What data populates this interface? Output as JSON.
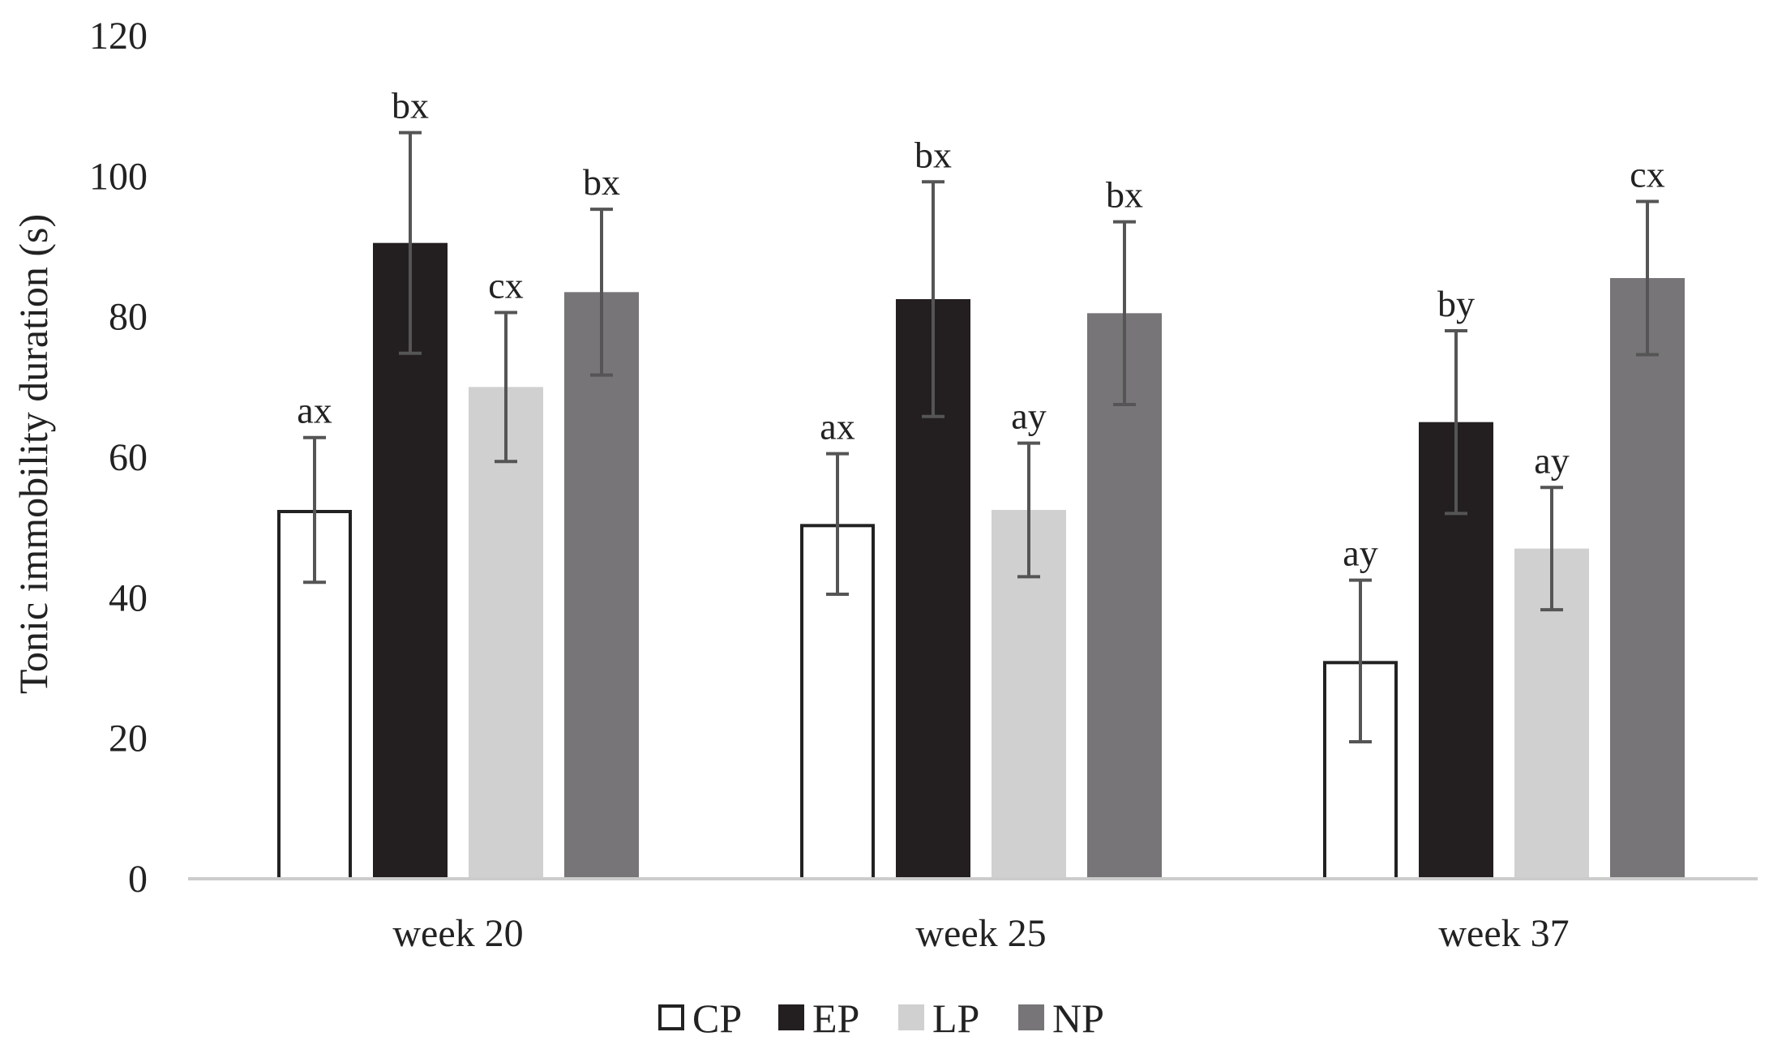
{
  "chart_data": {
    "type": "bar",
    "title": "",
    "xlabel": "",
    "ylabel": "Tonic immobility duration (s)",
    "ylim": [
      0,
      120
    ],
    "yticks": [
      0,
      20,
      40,
      60,
      80,
      100,
      120
    ],
    "yticks_text": [
      "0",
      "20",
      "40",
      "60",
      "80",
      "100",
      "120"
    ],
    "grid": false,
    "legend_position": "bottom-center",
    "categories": [
      "week 20",
      "week 25",
      "week 37"
    ],
    "series": [
      {
        "name": "CP",
        "fill": "#ffffff",
        "stroke": "#222222",
        "values": [
          52.5,
          50.5,
          31
        ],
        "errors": [
          10.3,
          10,
          11.5
        ],
        "labels": [
          "ax",
          "ax",
          "ay"
        ]
      },
      {
        "name": "EP",
        "fill": "#231f20",
        "stroke": "none",
        "values": [
          90.5,
          82.5,
          65
        ],
        "errors": [
          15.7,
          16.7,
          13
        ],
        "labels": [
          "bx",
          "bx",
          "by"
        ]
      },
      {
        "name": "LP",
        "fill": "#d0d0d0",
        "stroke": "none",
        "values": [
          70,
          52.5,
          47
        ],
        "errors": [
          10.6,
          9.5,
          8.7
        ],
        "labels": [
          "cx",
          "ay",
          "ay"
        ]
      },
      {
        "name": "NP",
        "fill": "#777577",
        "stroke": "none",
        "values": [
          83.5,
          80.5,
          85.5
        ],
        "errors": [
          11.8,
          13,
          10.9
        ],
        "labels": [
          "bx",
          "bx",
          "cx"
        ]
      }
    ],
    "error_bar_color": "#555555",
    "axis_color": "#cccccc"
  }
}
